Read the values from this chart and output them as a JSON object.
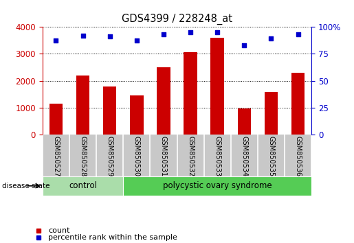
{
  "title": "GDS4399 / 228248_at",
  "samples": [
    "GSM850527",
    "GSM850528",
    "GSM850529",
    "GSM850530",
    "GSM850531",
    "GSM850532",
    "GSM850533",
    "GSM850534",
    "GSM850535",
    "GSM850536"
  ],
  "counts": [
    1150,
    2200,
    1800,
    1450,
    2500,
    3050,
    3600,
    980,
    1580,
    2300
  ],
  "percentile_ranks": [
    87,
    92,
    91,
    87,
    93,
    95,
    95,
    83,
    89,
    93
  ],
  "ylim_left": [
    0,
    4000
  ],
  "ylim_right": [
    0,
    100
  ],
  "yticks_left": [
    0,
    1000,
    2000,
    3000,
    4000
  ],
  "yticks_right": [
    0,
    25,
    50,
    75,
    100
  ],
  "bar_color": "#cc0000",
  "scatter_color": "#0000cc",
  "grid_color": "#000000",
  "left_axis_color": "#cc0000",
  "right_axis_color": "#0000cc",
  "control_samples": 3,
  "control_label": "control",
  "disease_label": "polycystic ovary syndrome",
  "disease_state_label": "disease state",
  "legend_count_label": "count",
  "legend_percentile_label": "percentile rank within the sample",
  "control_color": "#aaddaa",
  "disease_color": "#55cc55",
  "label_bg_color": "#c8c8c8",
  "bg_color": "#ffffff",
  "bar_width": 0.5,
  "figsize": [
    5.15,
    3.54
  ],
  "dpi": 100
}
